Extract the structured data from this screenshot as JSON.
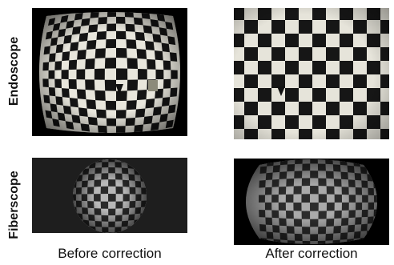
{
  "rows": {
    "endoscope": "Endoscope",
    "fiberscope": "Fiberscope"
  },
  "columns": {
    "before": "Before correction",
    "after": "After correction"
  },
  "panels": [
    {
      "id": "endoscope-before",
      "label": "endoscope before correction"
    },
    {
      "id": "endoscope-after",
      "label": "endoscope after correction"
    },
    {
      "id": "fiberscope-before",
      "label": "fiberscope before correction"
    },
    {
      "id": "fiberscope-after",
      "label": "fiberscope after correction"
    }
  ]
}
